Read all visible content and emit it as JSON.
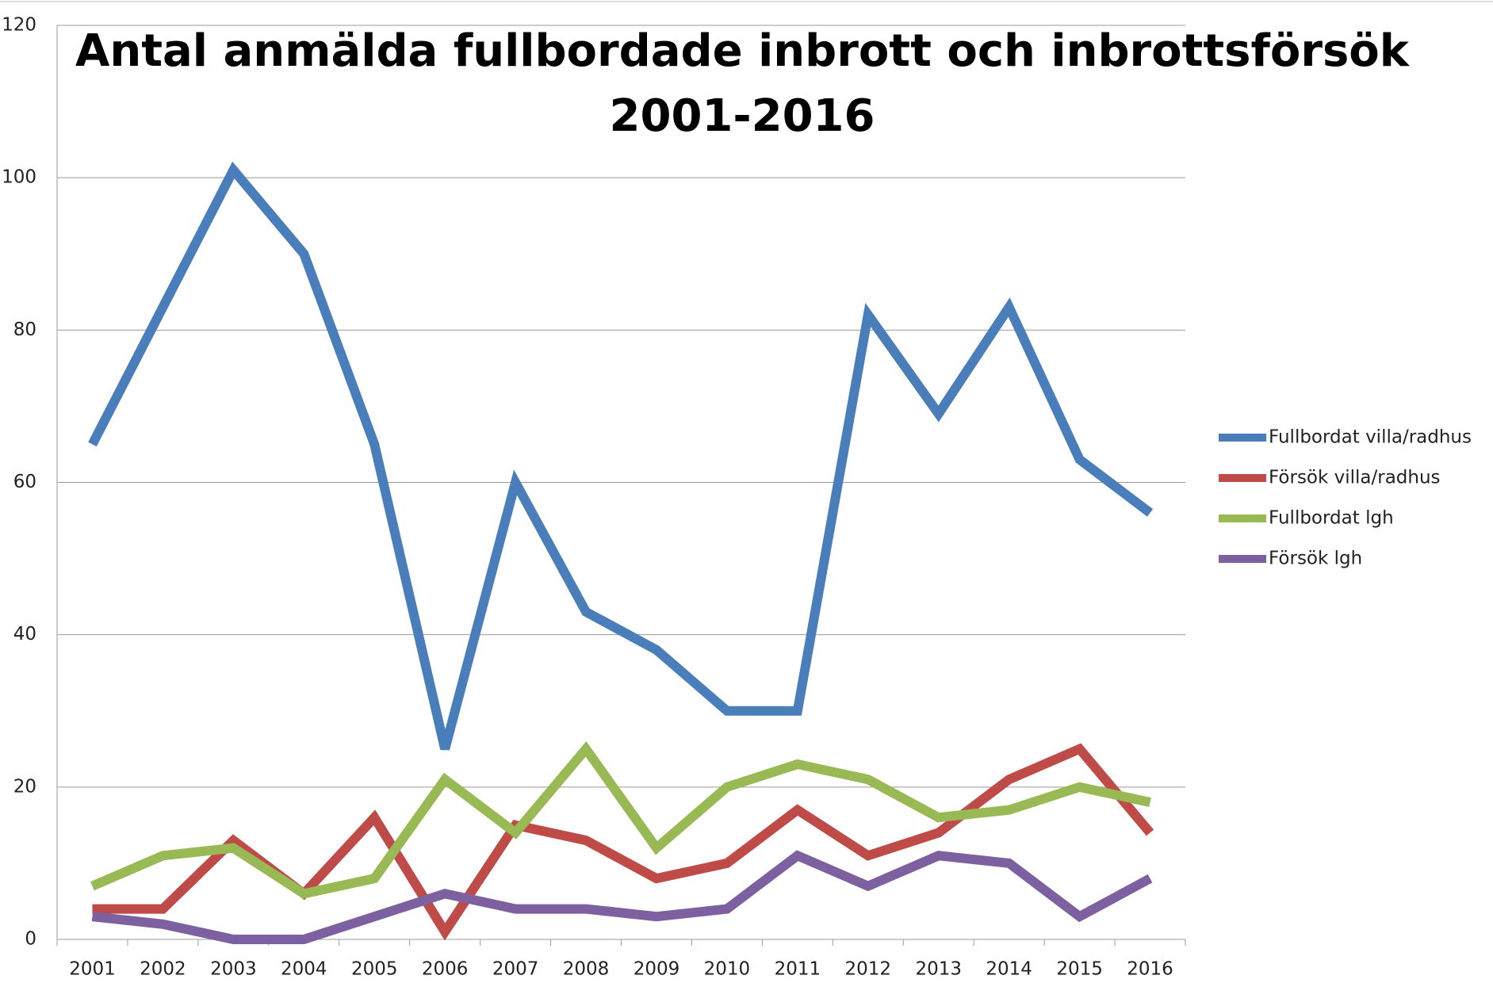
{
  "chart_data": {
    "type": "line",
    "title": [
      "Antal anmälda fullbordade inbrott och inbrottsförsök",
      "2001-2016"
    ],
    "categories": [
      "2001",
      "2002",
      "2003",
      "2004",
      "2005",
      "2006",
      "2007",
      "2008",
      "2009",
      "2010",
      "2011",
      "2012",
      "2013",
      "2014",
      "2015",
      "2016"
    ],
    "series": [
      {
        "name": "Fullbordat villa/radhus",
        "color": "#4a7ebb",
        "values": [
          65,
          83,
          101,
          90,
          65,
          25,
          60,
          43,
          38,
          30,
          30,
          82,
          69,
          83,
          63,
          56
        ]
      },
      {
        "name": "Försök villa/radhus",
        "color": "#be4b48",
        "values": [
          4,
          4,
          13,
          6,
          16,
          1,
          15,
          13,
          8,
          10,
          17,
          11,
          14,
          21,
          25,
          14
        ]
      },
      {
        "name": "Fullbordat lgh",
        "color": "#98b954",
        "values": [
          7,
          11,
          12,
          6,
          8,
          21,
          14,
          25,
          12,
          20,
          23,
          21,
          16,
          17,
          20,
          18
        ]
      },
      {
        "name": "Försök lgh",
        "color": "#7d60a0",
        "values": [
          3,
          2,
          0,
          0,
          3,
          6,
          4,
          4,
          3,
          4,
          11,
          7,
          11,
          10,
          3,
          8
        ]
      }
    ],
    "ylim": [
      0,
      120
    ],
    "yticks": [
      0,
      20,
      40,
      60,
      80,
      100,
      120
    ],
    "grid": true,
    "legend": "right"
  }
}
